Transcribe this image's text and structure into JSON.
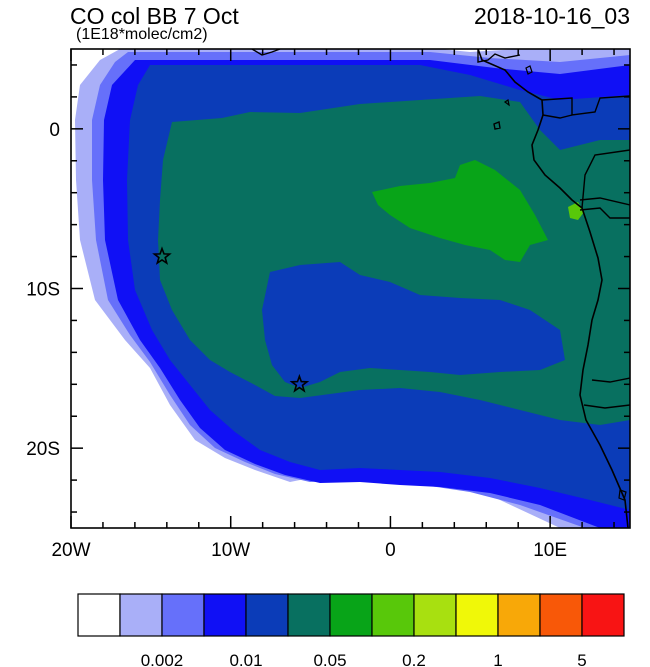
{
  "title": "CO col BB 7 Oct",
  "subtitle": "(1E18*molec/cm2)",
  "datetime": "2018-10-16_03",
  "axes": {
    "x_ticks": [
      {
        "label": "20W",
        "lon": -20
      },
      {
        "label": "10W",
        "lon": -10
      },
      {
        "label": "0",
        "lon": 0
      },
      {
        "label": "10E",
        "lon": 10
      }
    ],
    "y_ticks": [
      {
        "label": "0",
        "lat": 0
      },
      {
        "label": "10S",
        "lat": -10
      },
      {
        "label": "20S",
        "lat": -20
      }
    ],
    "lon_range": [
      -20,
      15
    ],
    "lat_range": [
      -25,
      5
    ]
  },
  "markers": [
    {
      "name": "star-1",
      "lon": -14.3,
      "lat": -8.0
    },
    {
      "name": "star-2",
      "lon": -5.7,
      "lat": -16.0
    }
  ],
  "colorbar": {
    "colors": [
      "#ffffff",
      "#a9aff8",
      "#6670fa",
      "#1010f5",
      "#0b3cb8",
      "#087060",
      "#08a418",
      "#58c80a",
      "#a8e010",
      "#f0f808",
      "#f8a808",
      "#f85808",
      "#f81414"
    ],
    "labels": [
      {
        "text": "0.002",
        "boundary": 2
      },
      {
        "text": "0.01",
        "boundary": 4
      },
      {
        "text": "0.05",
        "boundary": 6
      },
      {
        "text": "0.2",
        "boundary": 8
      },
      {
        "text": "1",
        "boundary": 10
      },
      {
        "text": "5",
        "boundary": 12
      }
    ]
  }
}
